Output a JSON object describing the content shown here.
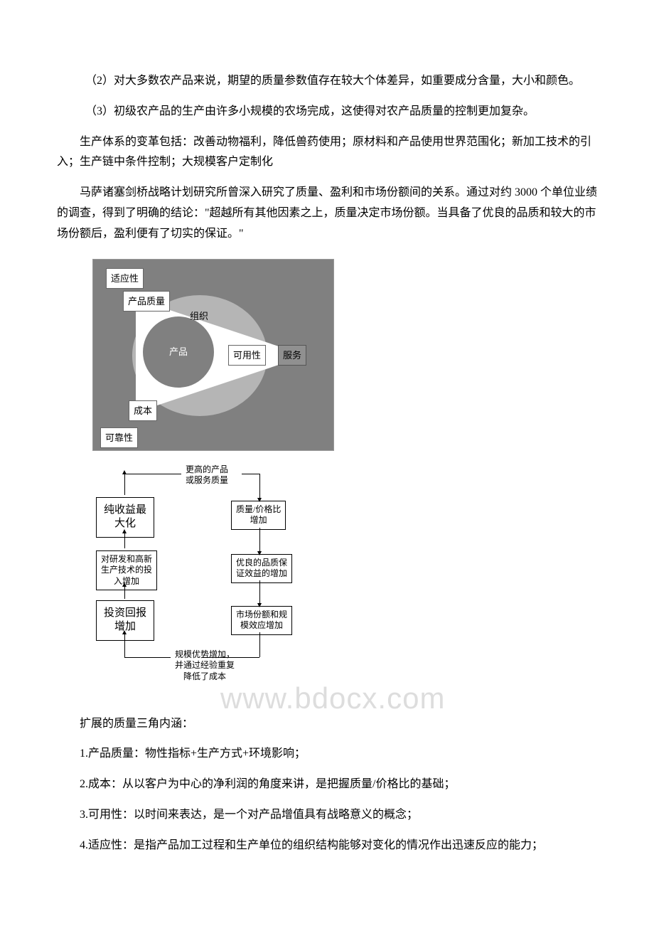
{
  "paragraphs": {
    "p1": "　（2）对大多数农产品来说，期望的质量参数值存在较大个体差异，如重要成分含量，大小和颜色。",
    "p2": "　（3）初级农产品的生产由许多小规模的农场完成，这使得对农产品质量的控制更加复杂。",
    "p3": "生产体系的变革包括：改善动物福利，降低兽药使用；原材料和产品使用世界范围化；新加工技术的引入；生产链中条件控制；大规模客户定制化",
    "p4": "马萨诸塞剑桥战略计划研究所曾深入研究了质量、盈利和市场份额间的关系。通过对约 3000 个单位业绩的调查，得到了明确的结论：\"超越所有其他因素之上，质量决定市场份额。当具备了优良的品质和较大的市场份额后，盈利便有了切实的保证。\"",
    "p5": "扩展的质量三角内涵：",
    "p6": "1.产品质量：物性指标+生产方式+环境影响；",
    "p7": "2.成本：从以客户为中心的净利润的角度来讲，是把握质量/价格比的基础；",
    "p8": "3.可用性：以时间来表达，是一个对产品增值具有战略意义的概念；",
    "p9": "4.适应性：是指产品加工过程和生产单位的组织结构能够对变化的情况作出迅速反应的能力；"
  },
  "diagram1": {
    "labels": {
      "top_left": "适应性",
      "quality": "产品质量",
      "org": "组织",
      "product": "产品",
      "availability": "可用性",
      "service": "服务",
      "cost": "成本",
      "reliability": "可靠性"
    },
    "colors": {
      "bg": "#808080",
      "triangle": "#ffffff",
      "circle_ring": "#b5b5b5",
      "circle_inner": "#808080",
      "box_bg": "#ffffff",
      "box_border": "#666666"
    }
  },
  "diagram2": {
    "nodes": {
      "top": "更高的产品\n或服务质量",
      "left_top": "纯收益最\n大化",
      "right_top": "质量/价格比\n增加",
      "left_mid": "对研发和高新\n生产技术的投\n入增加",
      "right_mid": "优良的品质保\n证效益的增加",
      "left_bot": "投资回报\n增加",
      "right_bot": "市场份额和规\n模效应增加",
      "bottom": "规模优势增加，\n并通过经验重复\n降低了成本"
    }
  },
  "watermark": "www.bdocx.com"
}
